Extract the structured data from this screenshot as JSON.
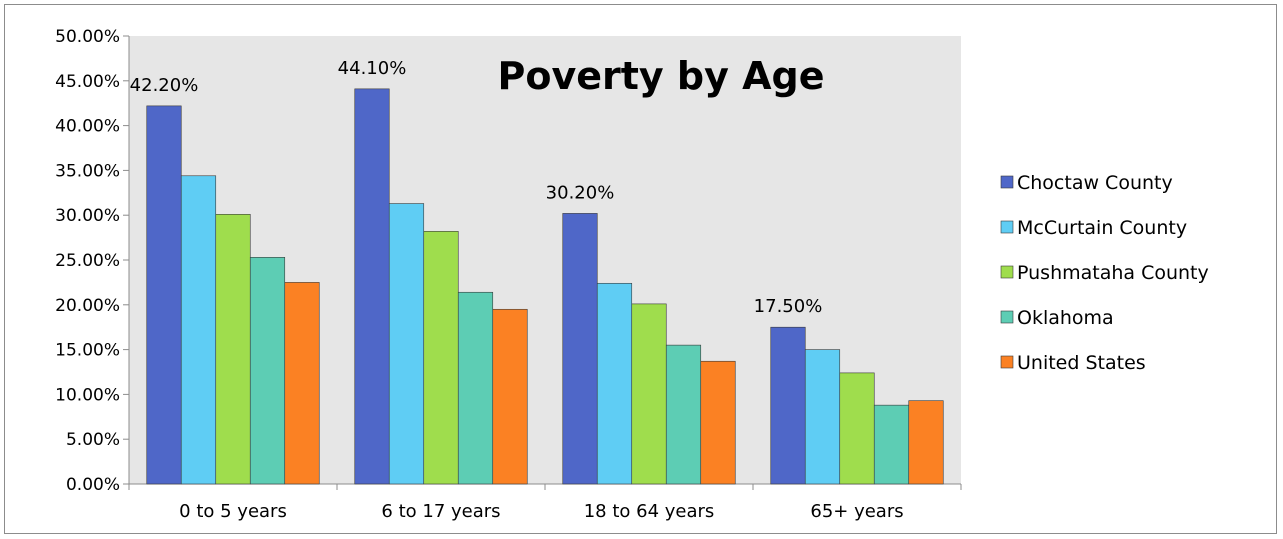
{
  "chart_data": {
    "type": "bar",
    "title": "Poverty by Age",
    "xlabel": "",
    "ylabel": "",
    "categories": [
      "0 to 5 years",
      "6 to 17 years",
      "18  to 64 years",
      "65+  years"
    ],
    "y_ticks": [
      "0.00%",
      "5.00%",
      "10.00%",
      "15.00%",
      "20.00%",
      "25.00%",
      "30.00%",
      "35.00%",
      "40.00%",
      "45.00%",
      "50.00%"
    ],
    "ylim": [
      0,
      0.5
    ],
    "grid": false,
    "legend_position": "right",
    "series": [
      {
        "name": "Choctaw County",
        "color": "#4f67c8",
        "values": [
          0.422,
          0.441,
          0.302,
          0.175
        ],
        "data_labels": [
          "42.20%",
          "44.10%",
          "30.20%",
          "17.50%"
        ]
      },
      {
        "name": "McCurtain County",
        "color": "#5fcdf4",
        "values": [
          0.344,
          0.313,
          0.224,
          0.15
        ]
      },
      {
        "name": "Pushmataha County",
        "color": "#9fdd4d",
        "values": [
          0.301,
          0.282,
          0.201,
          0.124
        ]
      },
      {
        "name": "Oklahoma",
        "color": "#5dcdb4",
        "values": [
          0.253,
          0.214,
          0.155,
          0.088
        ]
      },
      {
        "name": "United States",
        "color": "#fb8123",
        "values": [
          0.225,
          0.195,
          0.137,
          0.093
        ]
      }
    ],
    "plot_background": "#e6e6e6"
  }
}
